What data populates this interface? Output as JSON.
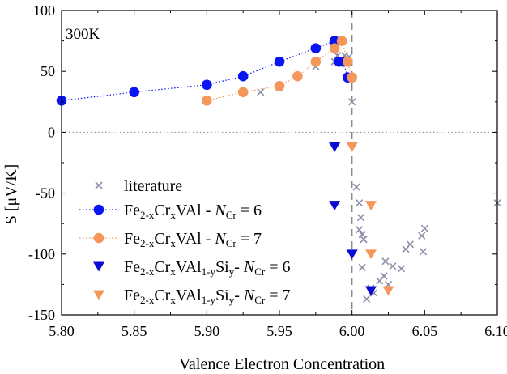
{
  "chart_data": {
    "type": "scatter",
    "annotation": "300K",
    "xlabel": "Valence Electron Concentration",
    "ylabel": "S [μV/K]",
    "xlim": [
      5.8,
      6.1
    ],
    "ylim": [
      -150,
      100
    ],
    "xticks": [
      5.8,
      5.85,
      5.9,
      5.95,
      6.0,
      6.05,
      6.1
    ],
    "xtick_labels": [
      "5.80",
      "5.85",
      "5.90",
      "5.95",
      "6.00",
      "6.05",
      "6.10"
    ],
    "yticks": [
      100,
      50,
      0,
      -50,
      -100,
      -150
    ],
    "ytick_labels": [
      "100",
      "50",
      "0",
      "-50",
      "-100",
      "-150"
    ],
    "reference_lines": {
      "horizontal_dotted_y": 0,
      "vertical_dashed_x": 6.0
    },
    "legend_position": "lower-left",
    "series": [
      {
        "name": "literature",
        "marker": "x",
        "color": "#8c8fa8",
        "points": [
          [
            5.937,
            33
          ],
          [
            5.95,
            37
          ],
          [
            5.975,
            54
          ],
          [
            5.988,
            58
          ],
          [
            5.99,
            63
          ],
          [
            5.993,
            58
          ],
          [
            5.995,
            63
          ],
          [
            5.998,
            62
          ],
          [
            6.0,
            25
          ],
          [
            6.003,
            -45
          ],
          [
            6.005,
            -58
          ],
          [
            6.006,
            -70
          ],
          [
            6.005,
            -80
          ],
          [
            6.007,
            -84
          ],
          [
            6.008,
            -88
          ],
          [
            6.007,
            -111
          ],
          [
            6.01,
            -137
          ],
          [
            6.013,
            -128
          ],
          [
            6.015,
            -132
          ],
          [
            6.019,
            -122
          ],
          [
            6.022,
            -118
          ],
          [
            6.023,
            -106
          ],
          [
            6.025,
            -125
          ],
          [
            6.028,
            -110
          ],
          [
            6.034,
            -112
          ],
          [
            6.037,
            -96
          ],
          [
            6.04,
            -92
          ],
          [
            6.048,
            -85
          ],
          [
            6.049,
            -98
          ],
          [
            6.05,
            -79
          ],
          [
            6.1,
            -58
          ]
        ]
      },
      {
        "name_parts": [
          {
            "t": "Fe",
            "s": "n"
          },
          {
            "t": "2-x",
            "s": "sub"
          },
          {
            "t": "Cr",
            "s": "n"
          },
          {
            "t": "x",
            "s": "sub"
          },
          {
            "t": "VAl - ",
            "s": "n"
          },
          {
            "t": "N",
            "s": "i"
          },
          {
            "t": "Cr",
            "s": "sub"
          },
          {
            "t": " = 6",
            "s": "n"
          }
        ],
        "marker": "circle",
        "color": "#0a14f0",
        "line": "dotted",
        "points": [
          [
            5.8,
            26
          ],
          [
            5.85,
            33
          ],
          [
            5.9,
            39
          ],
          [
            5.925,
            46
          ],
          [
            5.95,
            58
          ],
          [
            5.975,
            69
          ],
          [
            5.988,
            75
          ],
          [
            5.991,
            58
          ],
          [
            5.994,
            58
          ],
          [
            5.997,
            45
          ]
        ]
      },
      {
        "name_parts": [
          {
            "t": "Fe",
            "s": "n"
          },
          {
            "t": "2-x",
            "s": "sub"
          },
          {
            "t": "Cr",
            "s": "n"
          },
          {
            "t": "x",
            "s": "sub"
          },
          {
            "t": "VAl - ",
            "s": "n"
          },
          {
            "t": "N",
            "s": "i"
          },
          {
            "t": "Cr",
            "s": "sub"
          },
          {
            "t": " = 7",
            "s": "n"
          }
        ],
        "marker": "circle",
        "color": "#f5975a",
        "line": "dotted",
        "points": [
          [
            5.9,
            26
          ],
          [
            5.925,
            33
          ],
          [
            5.95,
            38
          ],
          [
            5.9625,
            46
          ],
          [
            5.975,
            58
          ],
          [
            5.988,
            69
          ],
          [
            5.993,
            75
          ],
          [
            5.997,
            58
          ],
          [
            6.0,
            45
          ]
        ]
      },
      {
        "name_parts": [
          {
            "t": "Fe",
            "s": "n"
          },
          {
            "t": "2-x",
            "s": "sub"
          },
          {
            "t": "Cr",
            "s": "n"
          },
          {
            "t": "x",
            "s": "sub"
          },
          {
            "t": "VAl",
            "s": "n"
          },
          {
            "t": "1-y",
            "s": "sub"
          },
          {
            "t": "Si",
            "s": "n"
          },
          {
            "t": "y",
            "s": "sub"
          },
          {
            "t": "- ",
            "s": "n"
          },
          {
            "t": "N",
            "s": "i"
          },
          {
            "t": "Cr",
            "s": "sub"
          },
          {
            "t": " = 6",
            "s": "n"
          }
        ],
        "marker": "triangle-down",
        "color": "#0a0ad2",
        "points": [
          [
            5.988,
            -12
          ],
          [
            5.988,
            -60
          ],
          [
            6.0,
            -100
          ],
          [
            6.013,
            -130
          ]
        ]
      },
      {
        "name_parts": [
          {
            "t": "Fe",
            "s": "n"
          },
          {
            "t": "2-x",
            "s": "sub"
          },
          {
            "t": "Cr",
            "s": "n"
          },
          {
            "t": "x",
            "s": "sub"
          },
          {
            "t": "VAl",
            "s": "n"
          },
          {
            "t": "1-y",
            "s": "sub"
          },
          {
            "t": "Si",
            "s": "n"
          },
          {
            "t": "y",
            "s": "sub"
          },
          {
            "t": "- ",
            "s": "n"
          },
          {
            "t": "N",
            "s": "i"
          },
          {
            "t": "Cr",
            "s": "sub"
          },
          {
            "t": " = 7",
            "s": "n"
          }
        ],
        "marker": "triangle-down",
        "color": "#f5975a",
        "points": [
          [
            6.0,
            -12
          ],
          [
            6.013,
            -60
          ],
          [
            6.013,
            -100
          ],
          [
            6.025,
            -130
          ]
        ]
      }
    ]
  }
}
